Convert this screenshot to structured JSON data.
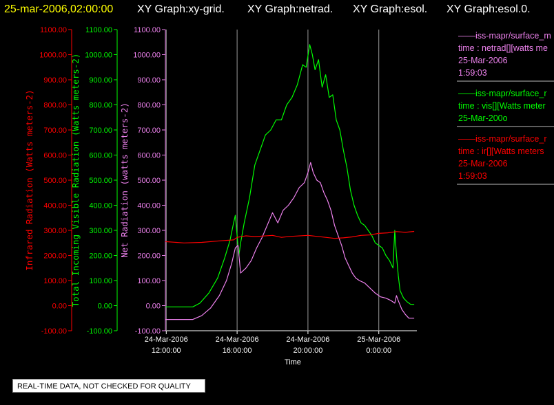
{
  "header": {
    "timestamp": "25-mar-2006,02:00:00",
    "graphs": [
      "XY Graph:xy-grid.",
      "XY Graph:netrad.",
      "XY Graph:esol.",
      "XY Graph:esol.0."
    ]
  },
  "notice": "REAL-TIME DATA, NOT CHECKED FOR QUALITY",
  "legend": [
    {
      "lines": [
        "——iss-mapr/surface_m",
        "time : netrad[][watts me",
        "25-Mar-2006",
        "1:59:03"
      ],
      "color": "#ee82ee"
    },
    {
      "lines": [
        "——iss-mapr/surface_r",
        "time : vis[][Watts meter",
        "25-Mar-200o"
      ],
      "color": "#00ff00"
    },
    {
      "lines": [
        "——iss-mapr/surface_r",
        "time : ir[][Watts meters",
        "25-Mar-2006",
        "1:59:03"
      ],
      "color": "#ff0000"
    }
  ],
  "chart_data": {
    "type": "line",
    "xlabel": "Time",
    "x_ticks": [
      {
        "hours": 12,
        "date": "24-Mar-2006",
        "time": "12:00:00"
      },
      {
        "hours": 16,
        "date": "24-Mar-2006",
        "time": "16:00:00"
      },
      {
        "hours": 20,
        "date": "24-Mar-2006",
        "time": "20:00:00"
      },
      {
        "hours": 24,
        "date": "25-Mar-2006",
        "time": "0:00:00"
      }
    ],
    "xlim": [
      11.95,
      26.15
    ],
    "y_axes": [
      {
        "id": "ir",
        "label": "Infrared Radiation (Watts meters-2)",
        "color": "#ff0000",
        "ylim": [
          -100,
          1100
        ]
      },
      {
        "id": "vis",
        "label": "Total Incoming Visible Radiation (Watts meters-2)",
        "color": "#00ff00",
        "ylim": [
          -100,
          1100
        ]
      },
      {
        "id": "net",
        "label": "Net Radiation (watts meters-2)",
        "color": "#ee82ee",
        "ylim": [
          -100,
          1100
        ]
      }
    ],
    "y_ticks": [
      -100,
      0,
      100,
      200,
      300,
      400,
      500,
      600,
      700,
      800,
      900,
      1000,
      1100
    ],
    "y_tick_labels": [
      "-100.00",
      "0.00",
      "100.00",
      "200.00",
      "300.00",
      "400.00",
      "500.00",
      "600.00",
      "700.00",
      "800.00",
      "900.00",
      "1000.00",
      "1100.00"
    ],
    "grid": "vertical lines at x ticks",
    "series": [
      {
        "axis": "vis",
        "color": "#00ff00",
        "x": [
          11.95,
          13.5,
          13.9,
          14.4,
          14.9,
          15.3,
          15.6,
          15.8,
          15.9,
          16.0,
          16.1,
          16.2,
          16.4,
          16.7,
          17.0,
          17.3,
          17.6,
          17.9,
          18.2,
          18.5,
          18.8,
          19.1,
          19.4,
          19.7,
          19.9,
          20.1,
          20.25,
          20.4,
          20.6,
          20.8,
          21.0,
          21.2,
          21.4,
          21.6,
          21.8,
          22.0,
          22.2,
          22.4,
          22.6,
          22.8,
          23.0,
          23.2,
          23.4,
          23.6,
          23.8,
          24.0,
          24.2,
          24.4,
          24.6,
          24.8,
          24.9,
          25.0,
          25.1,
          25.2,
          25.4,
          25.6,
          25.8,
          26.0
        ],
        "y": [
          -5,
          -5,
          10,
          50,
          110,
          190,
          260,
          330,
          360,
          280,
          200,
          250,
          330,
          430,
          560,
          620,
          680,
          700,
          740,
          740,
          800,
          830,
          880,
          960,
          950,
          1040,
          1000,
          940,
          980,
          870,
          920,
          830,
          840,
          740,
          700,
          620,
          550,
          460,
          400,
          360,
          330,
          320,
          300,
          280,
          250,
          240,
          230,
          200,
          180,
          150,
          300,
          200,
          120,
          60,
          30,
          15,
          5,
          5
        ]
      },
      {
        "axis": "net",
        "color": "#ee82ee",
        "x": [
          11.95,
          13.5,
          14.0,
          14.5,
          15.0,
          15.4,
          15.7,
          15.9,
          16.05,
          16.2,
          16.5,
          16.8,
          17.1,
          17.4,
          17.7,
          18.0,
          18.3,
          18.6,
          18.9,
          19.2,
          19.5,
          19.8,
          20.0,
          20.15,
          20.3,
          20.5,
          20.7,
          20.9,
          21.1,
          21.3,
          21.5,
          21.7,
          21.9,
          22.1,
          22.3,
          22.5,
          22.7,
          22.9,
          23.2,
          23.5,
          23.8,
          24.1,
          24.4,
          24.7,
          24.9,
          25.0,
          25.1,
          25.3,
          25.5,
          25.7,
          26.0
        ],
        "y": [
          -55,
          -55,
          -40,
          -10,
          40,
          100,
          170,
          230,
          240,
          130,
          150,
          180,
          230,
          270,
          320,
          370,
          330,
          380,
          400,
          430,
          470,
          490,
          530,
          570,
          530,
          500,
          490,
          450,
          420,
          380,
          320,
          280,
          240,
          190,
          160,
          130,
          110,
          100,
          90,
          70,
          50,
          35,
          30,
          20,
          10,
          40,
          20,
          -15,
          -35,
          -50,
          -50
        ]
      },
      {
        "axis": "ir",
        "color": "#ff0000",
        "x": [
          11.95,
          13.0,
          14.0,
          15.0,
          15.8,
          16.0,
          16.5,
          17.0,
          18.0,
          18.5,
          19.0,
          20.0,
          21.0,
          21.5,
          22.0,
          22.5,
          23.0,
          23.5,
          24.0,
          24.5,
          25.0,
          25.5,
          26.0
        ],
        "y": [
          255,
          250,
          252,
          258,
          262,
          272,
          278,
          275,
          280,
          272,
          276,
          280,
          272,
          268,
          270,
          274,
          280,
          282,
          288,
          290,
          295,
          292,
          296
        ]
      }
    ]
  }
}
